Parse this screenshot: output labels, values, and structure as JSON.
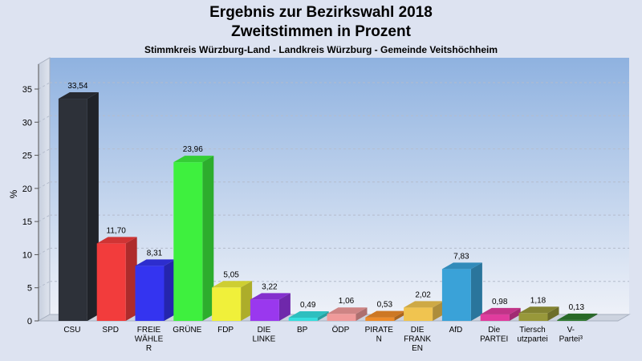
{
  "chart_data": {
    "type": "bar",
    "title": "Ergebnis zur Bezirkswahl 2018",
    "title_line2": "Zweitstimmen in Prozent",
    "subtitle": "Stimmkreis Würzburg-Land - Landkreis Würzburg - Gemeinde Veitshöchheim",
    "ylabel": "%",
    "xlabel": "",
    "ylim": [
      0,
      38
    ],
    "yticks": [
      0,
      5,
      10,
      15,
      20,
      25,
      30,
      35
    ],
    "grid": true,
    "categories": [
      [
        "CSU"
      ],
      [
        "SPD"
      ],
      [
        "FREIE",
        "WÄHLE",
        "R"
      ],
      [
        "GRÜNE"
      ],
      [
        "FDP"
      ],
      [
        "DIE",
        "LINKE"
      ],
      [
        "BP"
      ],
      [
        "ÖDP"
      ],
      [
        "PIRATE",
        "N"
      ],
      [
        "DIE",
        "FRANK",
        "EN"
      ],
      [
        "AfD"
      ],
      [
        "Die",
        "PARTEI"
      ],
      [
        "Tiersch",
        "utzpartei"
      ],
      [
        "V-",
        "Partei³"
      ]
    ],
    "values": [
      33.54,
      11.7,
      8.31,
      23.96,
      5.05,
      3.22,
      0.49,
      1.06,
      0.53,
      2.02,
      7.83,
      0.98,
      1.18,
      0.13
    ],
    "value_labels": [
      "33,54",
      "11,70",
      "8,31",
      "23,96",
      "5,05",
      "3,22",
      "0,49",
      "1,06",
      "0,53",
      "2,02",
      "7,83",
      "0,98",
      "1,18",
      "0,13"
    ],
    "colors": [
      "#2d3139",
      "#f23c3c",
      "#3434f0",
      "#3ef03e",
      "#f0f03a",
      "#9a38ee",
      "#36dede",
      "#f09a9a",
      "#ee8c2a",
      "#f0c450",
      "#3aa2d8",
      "#e03c9e",
      "#98983a",
      "#2e7a2e"
    ]
  }
}
